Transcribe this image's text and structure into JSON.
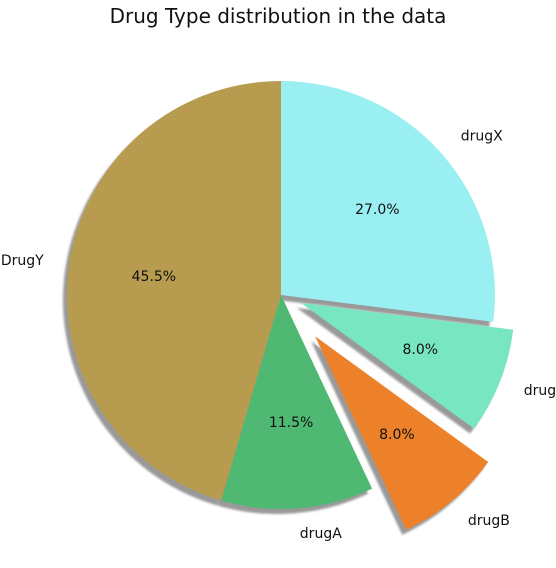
{
  "chart_data": {
    "type": "pie",
    "title": "Drug Type distribution in the data",
    "start_angle_deg": 90,
    "counterclock": true,
    "shadow": true,
    "slices": [
      {
        "label": "DrugY",
        "value": 45.5,
        "pct_text": "45.5%",
        "color": "#b79b4f",
        "explode": 0
      },
      {
        "label": "drugA",
        "value": 11.5,
        "pct_text": "11.5%",
        "color": "#4fb873",
        "explode": 0
      },
      {
        "label": "drugB",
        "value": 8.0,
        "pct_text": "8.0%",
        "color": "#ec8129",
        "explode": 0.25
      },
      {
        "label": "drugC",
        "value": 8.0,
        "pct_text": "8.0%",
        "color": "#78e6c1",
        "explode": 0.1
      },
      {
        "label": "drugX",
        "value": 27.0,
        "pct_text": "27.0%",
        "color": "#99eff2",
        "explode": 0
      }
    ]
  }
}
